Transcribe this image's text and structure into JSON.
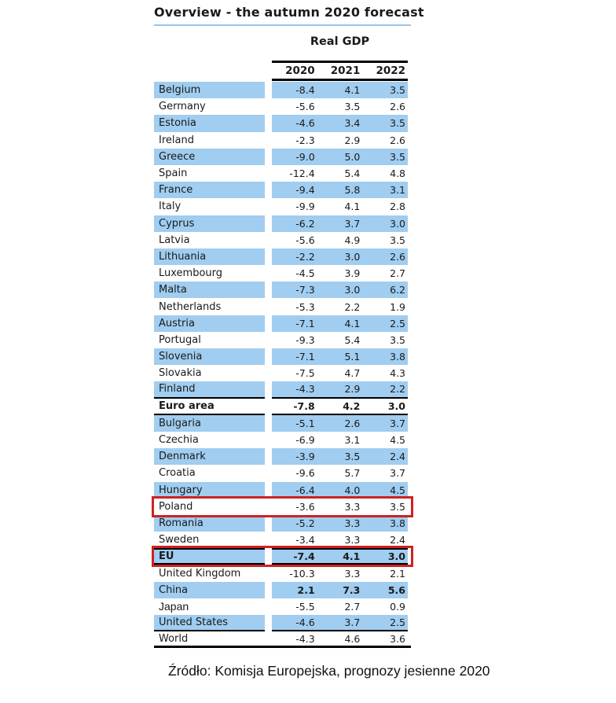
{
  "title": "Overview - the autumn 2020 forecast",
  "table": {
    "group_header": "Real GDP",
    "columns": [
      "2020",
      "2021",
      "2022"
    ],
    "rows": [
      {
        "label": "Belgium",
        "values": [
          "-8.4",
          "4.1",
          "3.5"
        ]
      },
      {
        "label": "Germany",
        "values": [
          "-5.6",
          "3.5",
          "2.6"
        ]
      },
      {
        "label": "Estonia",
        "values": [
          "-4.6",
          "3.4",
          "3.5"
        ]
      },
      {
        "label": "Ireland",
        "values": [
          "-2.3",
          "2.9",
          "2.6"
        ]
      },
      {
        "label": "Greece",
        "values": [
          "-9.0",
          "5.0",
          "3.5"
        ]
      },
      {
        "label": "Spain",
        "values": [
          "-12.4",
          "5.4",
          "4.8"
        ]
      },
      {
        "label": "France",
        "values": [
          "-9.4",
          "5.8",
          "3.1"
        ]
      },
      {
        "label": "Italy",
        "values": [
          "-9.9",
          "4.1",
          "2.8"
        ]
      },
      {
        "label": "Cyprus",
        "values": [
          "-6.2",
          "3.7",
          "3.0"
        ]
      },
      {
        "label": "Latvia",
        "values": [
          "-5.6",
          "4.9",
          "3.5"
        ]
      },
      {
        "label": "Lithuania",
        "values": [
          "-2.2",
          "3.0",
          "2.6"
        ]
      },
      {
        "label": "Luxembourg",
        "values": [
          "-4.5",
          "3.9",
          "2.7"
        ]
      },
      {
        "label": "Malta",
        "values": [
          "-7.3",
          "3.0",
          "6.2"
        ]
      },
      {
        "label": "Netherlands",
        "values": [
          "-5.3",
          "2.2",
          "1.9"
        ]
      },
      {
        "label": "Austria",
        "values": [
          "-7.1",
          "4.1",
          "2.5"
        ]
      },
      {
        "label": "Portugal",
        "values": [
          "-9.3",
          "5.4",
          "3.5"
        ]
      },
      {
        "label": "Slovenia",
        "values": [
          "-7.1",
          "5.1",
          "3.8"
        ]
      },
      {
        "label": "Slovakia",
        "values": [
          "-7.5",
          "4.7",
          "4.3"
        ]
      },
      {
        "label": "Finland",
        "values": [
          "-4.3",
          "2.9",
          "2.2"
        ],
        "line_below": true
      },
      {
        "label": "Euro area",
        "values": [
          "-7.8",
          "4.2",
          "3.0"
        ],
        "bold": true,
        "line_below": true
      },
      {
        "label": "Bulgaria",
        "values": [
          "-5.1",
          "2.6",
          "3.7"
        ]
      },
      {
        "label": "Czechia",
        "values": [
          "-6.9",
          "3.1",
          "4.5"
        ]
      },
      {
        "label": "Denmark",
        "values": [
          "-3.9",
          "3.5",
          "2.4"
        ]
      },
      {
        "label": "Croatia",
        "values": [
          "-9.6",
          "5.7",
          "3.7"
        ]
      },
      {
        "label": "Hungary",
        "values": [
          "-6.4",
          "4.0",
          "4.5"
        ]
      },
      {
        "label": "Poland",
        "values": [
          "-3.6",
          "3.3",
          "3.5"
        ],
        "boxed": true
      },
      {
        "label": "Romania",
        "values": [
          "-5.2",
          "3.3",
          "3.8"
        ]
      },
      {
        "label": "Sweden",
        "values": [
          "-3.4",
          "3.3",
          "2.4"
        ]
      },
      {
        "label": "EU",
        "values": [
          "-7.4",
          "4.1",
          "3.0"
        ],
        "bold": true,
        "boxed": true,
        "line_above": true,
        "line_below": true
      },
      {
        "label": "United Kingdom",
        "values": [
          "-10.3",
          "3.3",
          "2.1"
        ]
      },
      {
        "label": "China",
        "values": [
          "2.1",
          "7.3",
          "5.6"
        ],
        "values_bold": true
      },
      {
        "label": "Japan",
        "values": [
          "-5.5",
          "2.7",
          "0.9"
        ],
        "alt_font": true
      },
      {
        "label": "United States",
        "values": [
          "-4.6",
          "3.7",
          "2.5"
        ],
        "line_below": true
      },
      {
        "label": "World",
        "values": [
          "-4.3",
          "4.6",
          "3.6"
        ],
        "full_line_below": true
      }
    ]
  },
  "source": "Źródło: Komisja Europejska, prognozy jesienne 2020",
  "colors": {
    "row_highlight": "#A0CDF0",
    "title_underline": "#9DC3E6",
    "highlight_box": "#CC2222",
    "separator_line": "#000000"
  }
}
